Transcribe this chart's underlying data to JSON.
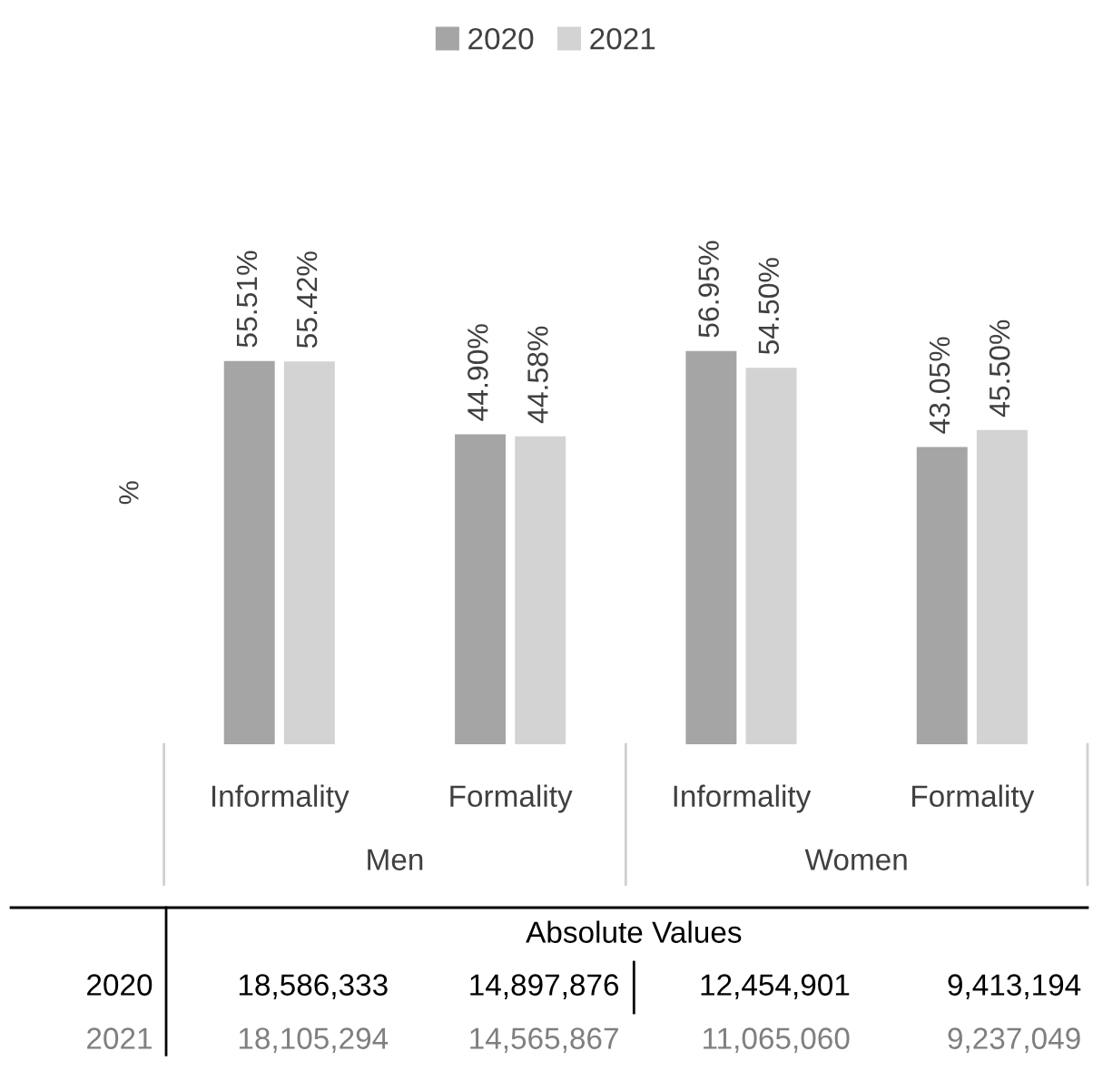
{
  "chart_data": {
    "type": "bar",
    "ylabel": "%",
    "categories": [
      "Informality",
      "Formality",
      "Informality",
      "Formality"
    ],
    "series": [
      {
        "name": "2020",
        "color": "#a5a5a5",
        "values": [
          55.51,
          44.9,
          56.95,
          43.05
        ],
        "value_labels": [
          "55.51%",
          "44.90%",
          "56.95%",
          "43.05%"
        ]
      },
      {
        "name": "2021",
        "color": "#d3d3d3",
        "values": [
          55.42,
          44.58,
          54.5,
          45.5
        ],
        "value_labels": [
          "55.42%",
          "44.58%",
          "54.50%",
          "45.50%"
        ]
      }
    ],
    "legend": "top",
    "grid": false,
    "annotations": [
      "Men",
      "Women",
      "Absolute Values",
      "2020",
      "18,586,333",
      "14,897,876",
      "12,454,901",
      "9,413,194",
      "2021",
      "18,105,294",
      "14,565,867",
      "11,065,060",
      "9,237,049"
    ]
  }
}
